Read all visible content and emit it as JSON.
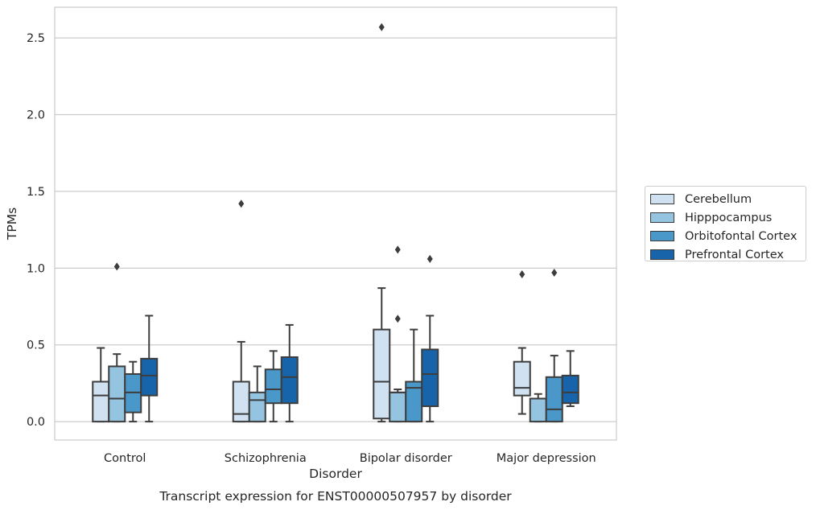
{
  "chart_data": {
    "type": "box",
    "title": "",
    "xlabel": "Disorder",
    "ylabel": "TPMs",
    "caption": "Transcript expression for ENST00000507957 by disorder",
    "ylim": [
      -0.12,
      2.7
    ],
    "yticks": [
      "0.0",
      "0.5",
      "1.0",
      "1.5",
      "2.0",
      "2.5"
    ],
    "grid": "horizontal",
    "legend_position": "right",
    "categories": [
      "Control",
      "Schizophrenia",
      "Bipolar disorder",
      "Major depression"
    ],
    "series": [
      {
        "name": "Cerebellum",
        "color": "#d0e1f2",
        "boxes": [
          {
            "min": 0.0,
            "q1": 0.0,
            "median": 0.17,
            "q3": 0.26,
            "max": 0.48,
            "outliers": []
          },
          {
            "min": 0.0,
            "q1": 0.0,
            "median": 0.05,
            "q3": 0.26,
            "max": 0.52,
            "outliers": [
              1.42
            ]
          },
          {
            "min": 0.0,
            "q1": 0.02,
            "median": 0.26,
            "q3": 0.6,
            "max": 0.87,
            "outliers": [
              2.57
            ]
          },
          {
            "min": 0.05,
            "q1": 0.17,
            "median": 0.22,
            "q3": 0.39,
            "max": 0.48,
            "outliers": [
              0.96
            ]
          }
        ]
      },
      {
        "name": "Hipppocampus",
        "color": "#94c4df",
        "boxes": [
          {
            "min": 0.0,
            "q1": 0.0,
            "median": 0.15,
            "q3": 0.36,
            "max": 0.44,
            "outliers": [
              1.01
            ]
          },
          {
            "min": 0.0,
            "q1": 0.0,
            "median": 0.14,
            "q3": 0.19,
            "max": 0.36,
            "outliers": []
          },
          {
            "min": 0.0,
            "q1": 0.0,
            "median": 0.19,
            "q3": 0.19,
            "max": 0.21,
            "outliers": [
              0.67,
              1.12
            ]
          },
          {
            "min": 0.0,
            "q1": 0.0,
            "median": 0.15,
            "q3": 0.15,
            "max": 0.18,
            "outliers": []
          }
        ]
      },
      {
        "name": "Orbitofontal Cortex",
        "color": "#4a98c9",
        "boxes": [
          {
            "min": 0.0,
            "q1": 0.06,
            "median": 0.19,
            "q3": 0.31,
            "max": 0.39,
            "outliers": []
          },
          {
            "min": 0.0,
            "q1": 0.12,
            "median": 0.21,
            "q3": 0.34,
            "max": 0.46,
            "outliers": []
          },
          {
            "min": 0.0,
            "q1": 0.0,
            "median": 0.22,
            "q3": 0.26,
            "max": 0.6,
            "outliers": []
          },
          {
            "min": 0.0,
            "q1": 0.0,
            "median": 0.08,
            "q3": 0.29,
            "max": 0.43,
            "outliers": [
              0.97
            ]
          }
        ]
      },
      {
        "name": "Prefrontal Cortex",
        "color": "#1764ab",
        "boxes": [
          {
            "min": 0.0,
            "q1": 0.17,
            "median": 0.3,
            "q3": 0.41,
            "max": 0.69,
            "outliers": []
          },
          {
            "min": 0.0,
            "q1": 0.12,
            "median": 0.29,
            "q3": 0.42,
            "max": 0.63,
            "outliers": []
          },
          {
            "min": 0.0,
            "q1": 0.1,
            "median": 0.31,
            "q3": 0.47,
            "max": 0.69,
            "outliers": [
              1.06
            ]
          },
          {
            "min": 0.1,
            "q1": 0.12,
            "median": 0.19,
            "q3": 0.3,
            "max": 0.46,
            "outliers": []
          }
        ]
      }
    ]
  }
}
